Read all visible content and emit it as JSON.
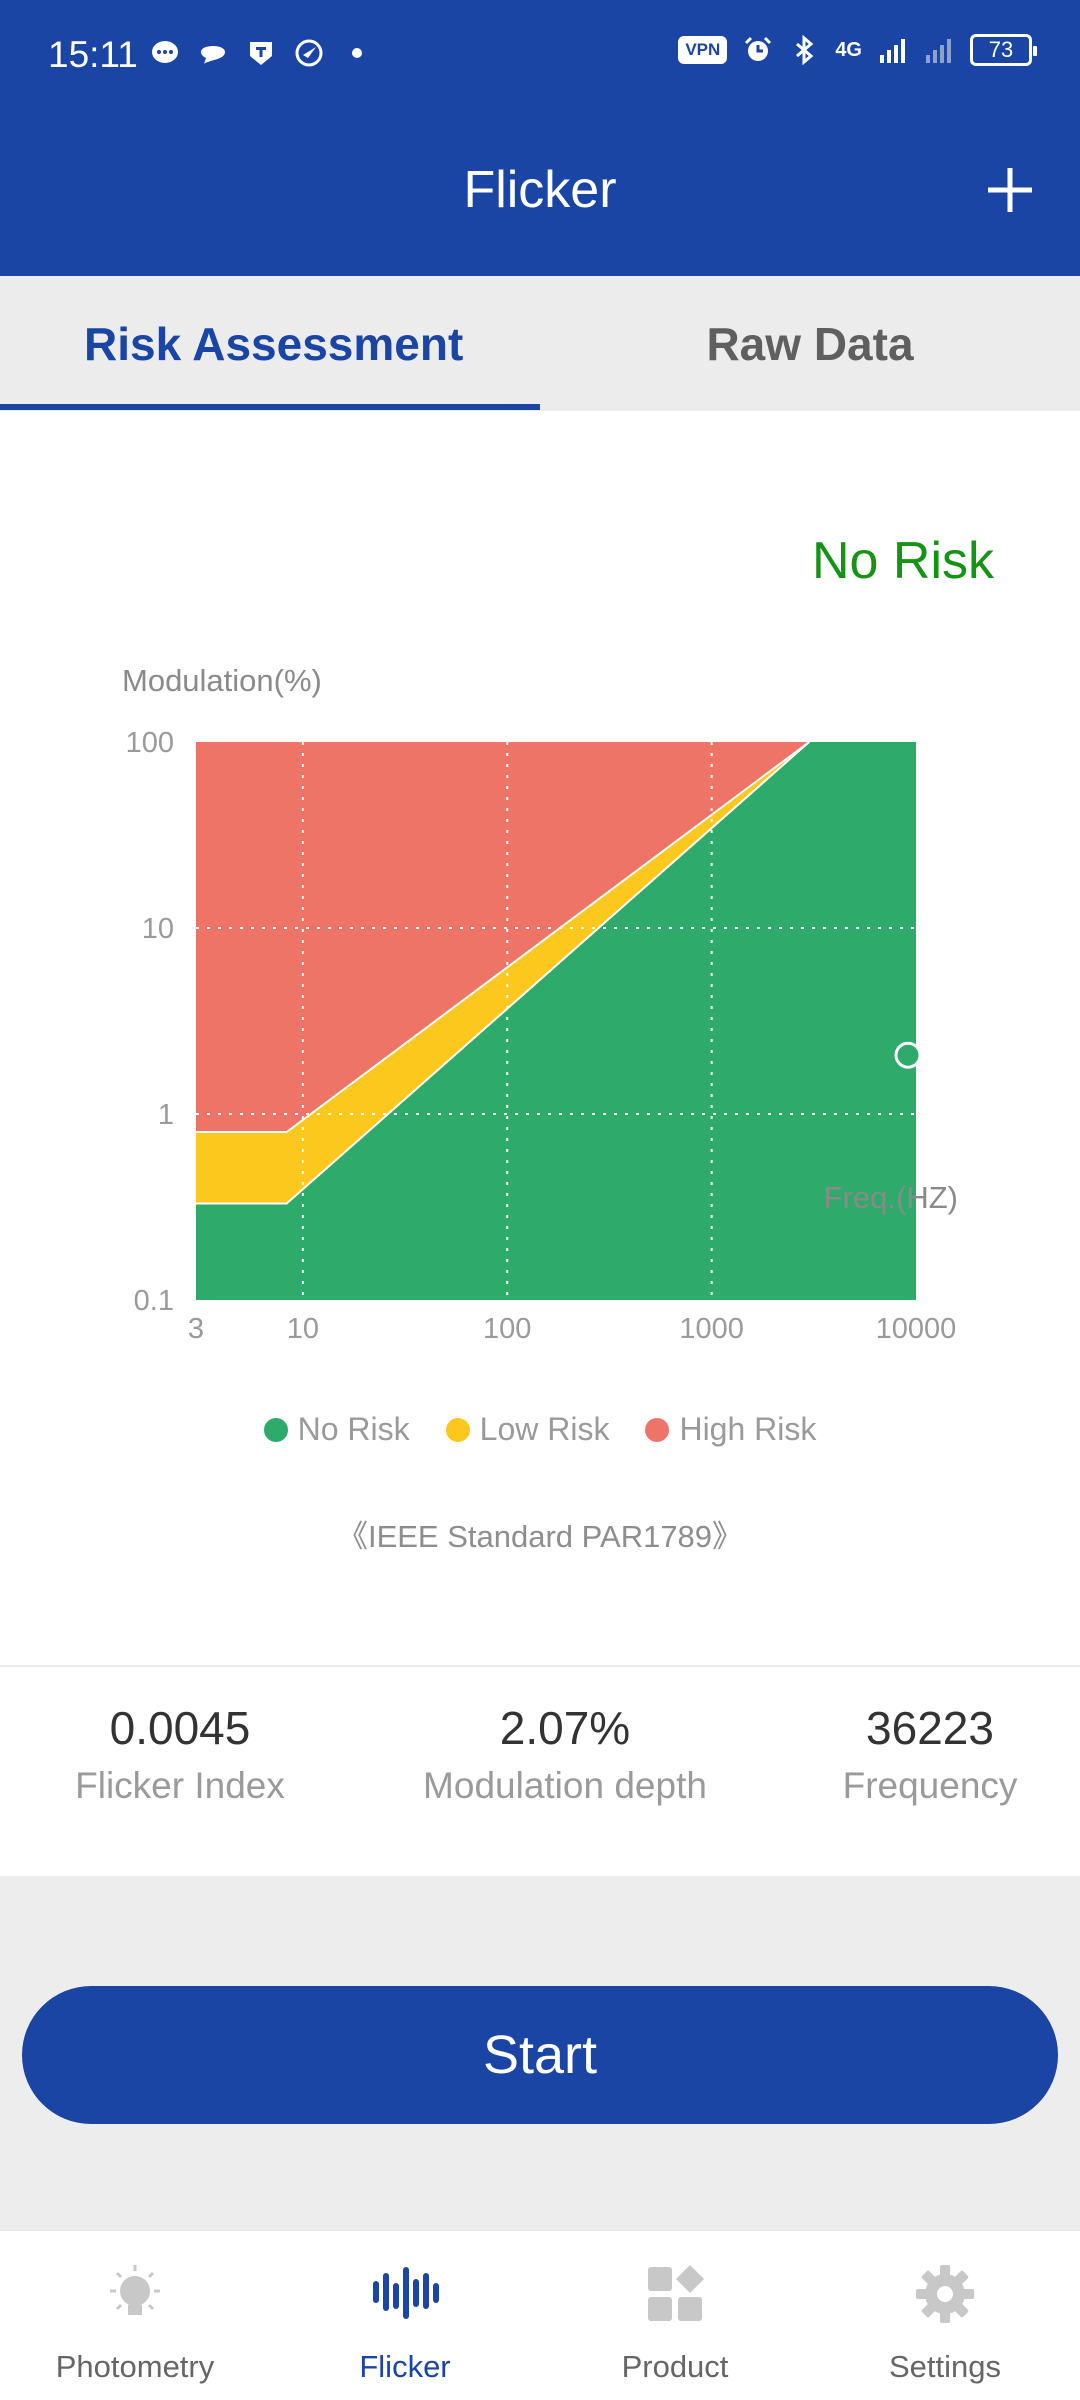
{
  "status_bar": {
    "time": "15:11",
    "vpn": "VPN",
    "network": "4G",
    "battery": "73"
  },
  "header": {
    "title": "Flicker",
    "add_icon": "plus-icon"
  },
  "tabs": [
    {
      "label": "Risk Assessment",
      "active": true
    },
    {
      "label": "Raw Data",
      "active": false
    }
  ],
  "risk_status": "No Risk",
  "chart_data": {
    "type": "area",
    "ylabel": "Modulation(%)",
    "xlabel": "Freq.(HZ)",
    "x_scale": "log",
    "y_scale": "log",
    "xlim": [
      3,
      10000
    ],
    "ylim": [
      0.1,
      100
    ],
    "x_ticks": [
      "3",
      "10",
      "100",
      "1000",
      "10000"
    ],
    "y_ticks": [
      "100",
      "10",
      "1",
      "0.1"
    ],
    "grid": true,
    "regions": [
      {
        "name": "High Risk",
        "color": "#ef7468",
        "boundary": [
          [
            3,
            0.8
          ],
          [
            8.33,
            0.8
          ],
          [
            3000,
            100
          ]
        ]
      },
      {
        "name": "Low Risk",
        "color": "#fdc81e",
        "boundary": [
          [
            3,
            0.8
          ],
          [
            8.33,
            0.8
          ],
          [
            3000,
            100
          ]
        ]
      },
      {
        "name": "No Risk",
        "color": "#2eaa6b",
        "boundary": [
          [
            3,
            0.1
          ],
          [
            8.33,
            0.1
          ],
          [
            8.33,
            0.33
          ],
          [
            3000,
            100
          ]
        ]
      }
    ],
    "measurement": {
      "x": 36223,
      "y": 2.07
    },
    "legend": [
      "No Risk",
      "Low Risk",
      "High Risk"
    ],
    "legend_colors": [
      "#2eaa6b",
      "#fdc81e",
      "#ef7468"
    ],
    "legend_position": "bottom"
  },
  "standard_note": "《IEEE Standard PAR1789》",
  "metrics": [
    {
      "value": "0.0045",
      "label": "Flicker Index"
    },
    {
      "value": "2.07%",
      "label": "Modulation depth"
    },
    {
      "value": "36223",
      "label": "Frequency"
    }
  ],
  "start_button": "Start",
  "bottom_nav": [
    {
      "label": "Photometry",
      "icon": "lightbulb-icon",
      "active": false
    },
    {
      "label": "Flicker",
      "icon": "waveform-icon",
      "active": true
    },
    {
      "label": "Product",
      "icon": "grid-icon",
      "active": false
    },
    {
      "label": "Settings",
      "icon": "gear-icon",
      "active": false
    }
  ]
}
